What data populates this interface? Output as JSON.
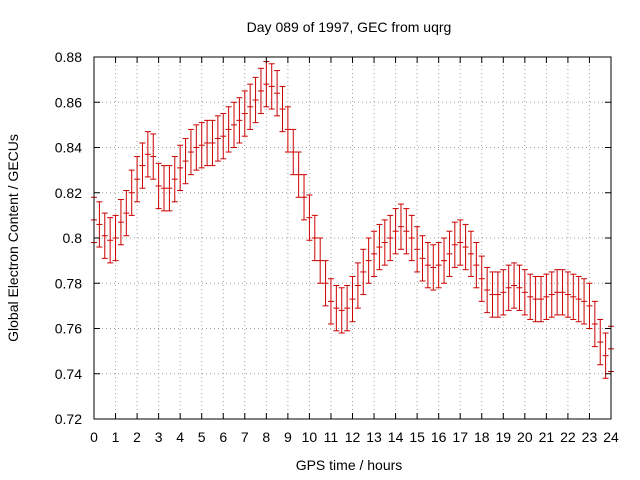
{
  "chart_data": {
    "type": "scatter",
    "title": "Day 089 of 1997, GEC from uqrg",
    "xlabel": "GPS time / hours",
    "ylabel": "Global Electron Content / GECUs",
    "xlim": [
      0,
      24
    ],
    "ylim": [
      0.72,
      0.88
    ],
    "grid": true,
    "x_ticks": [
      "0",
      "1",
      "2",
      "3",
      "4",
      "5",
      "6",
      "7",
      "8",
      "9",
      "10",
      "11",
      "12",
      "13",
      "14",
      "15",
      "16",
      "17",
      "18",
      "19",
      "20",
      "21",
      "22",
      "23",
      "24"
    ],
    "y_ticks": [
      "0.72",
      "0.74",
      "0.76",
      "0.78",
      "0.8",
      "0.82",
      "0.84",
      "0.86",
      "0.88"
    ],
    "series_color": "#cc0000",
    "error_half_width": 0.01,
    "series": [
      {
        "name": "GEC",
        "x": [
          0,
          0.25,
          0.5,
          0.75,
          1,
          1.25,
          1.5,
          1.75,
          2,
          2.25,
          2.5,
          2.75,
          3,
          3.25,
          3.5,
          3.75,
          4,
          4.25,
          4.5,
          4.75,
          5,
          5.25,
          5.5,
          5.75,
          6,
          6.25,
          6.5,
          6.75,
          7,
          7.25,
          7.5,
          7.75,
          8,
          8.25,
          8.5,
          8.75,
          9,
          9.25,
          9.5,
          9.75,
          10,
          10.25,
          10.5,
          10.75,
          11,
          11.25,
          11.5,
          11.75,
          12,
          12.25,
          12.5,
          12.75,
          13,
          13.25,
          13.5,
          13.75,
          14,
          14.25,
          14.5,
          14.75,
          15,
          15.25,
          15.5,
          15.75,
          16,
          16.25,
          16.5,
          16.75,
          17,
          17.25,
          17.5,
          17.75,
          18,
          18.25,
          18.5,
          18.75,
          19,
          19.25,
          19.5,
          19.75,
          20,
          20.25,
          20.5,
          20.75,
          21,
          21.25,
          21.5,
          21.75,
          22,
          22.25,
          22.5,
          22.75,
          23,
          23.25,
          23.5,
          23.75,
          24
        ],
        "y": [
          0.808,
          0.806,
          0.801,
          0.799,
          0.8,
          0.807,
          0.811,
          0.82,
          0.826,
          0.832,
          0.837,
          0.836,
          0.823,
          0.822,
          0.822,
          0.826,
          0.831,
          0.834,
          0.838,
          0.84,
          0.841,
          0.842,
          0.842,
          0.844,
          0.845,
          0.848,
          0.85,
          0.852,
          0.855,
          0.858,
          0.861,
          0.865,
          0.868,
          0.867,
          0.864,
          0.857,
          0.848,
          0.838,
          0.828,
          0.818,
          0.809,
          0.8,
          0.79,
          0.78,
          0.772,
          0.769,
          0.768,
          0.769,
          0.773,
          0.779,
          0.785,
          0.79,
          0.793,
          0.796,
          0.798,
          0.8,
          0.803,
          0.805,
          0.803,
          0.8,
          0.795,
          0.791,
          0.788,
          0.787,
          0.788,
          0.79,
          0.793,
          0.797,
          0.798,
          0.796,
          0.793,
          0.788,
          0.782,
          0.777,
          0.775,
          0.775,
          0.776,
          0.778,
          0.779,
          0.778,
          0.776,
          0.774,
          0.773,
          0.773,
          0.774,
          0.775,
          0.776,
          0.776,
          0.775,
          0.774,
          0.773,
          0.772,
          0.77,
          0.762,
          0.754,
          0.748,
          0.751
        ]
      }
    ]
  }
}
